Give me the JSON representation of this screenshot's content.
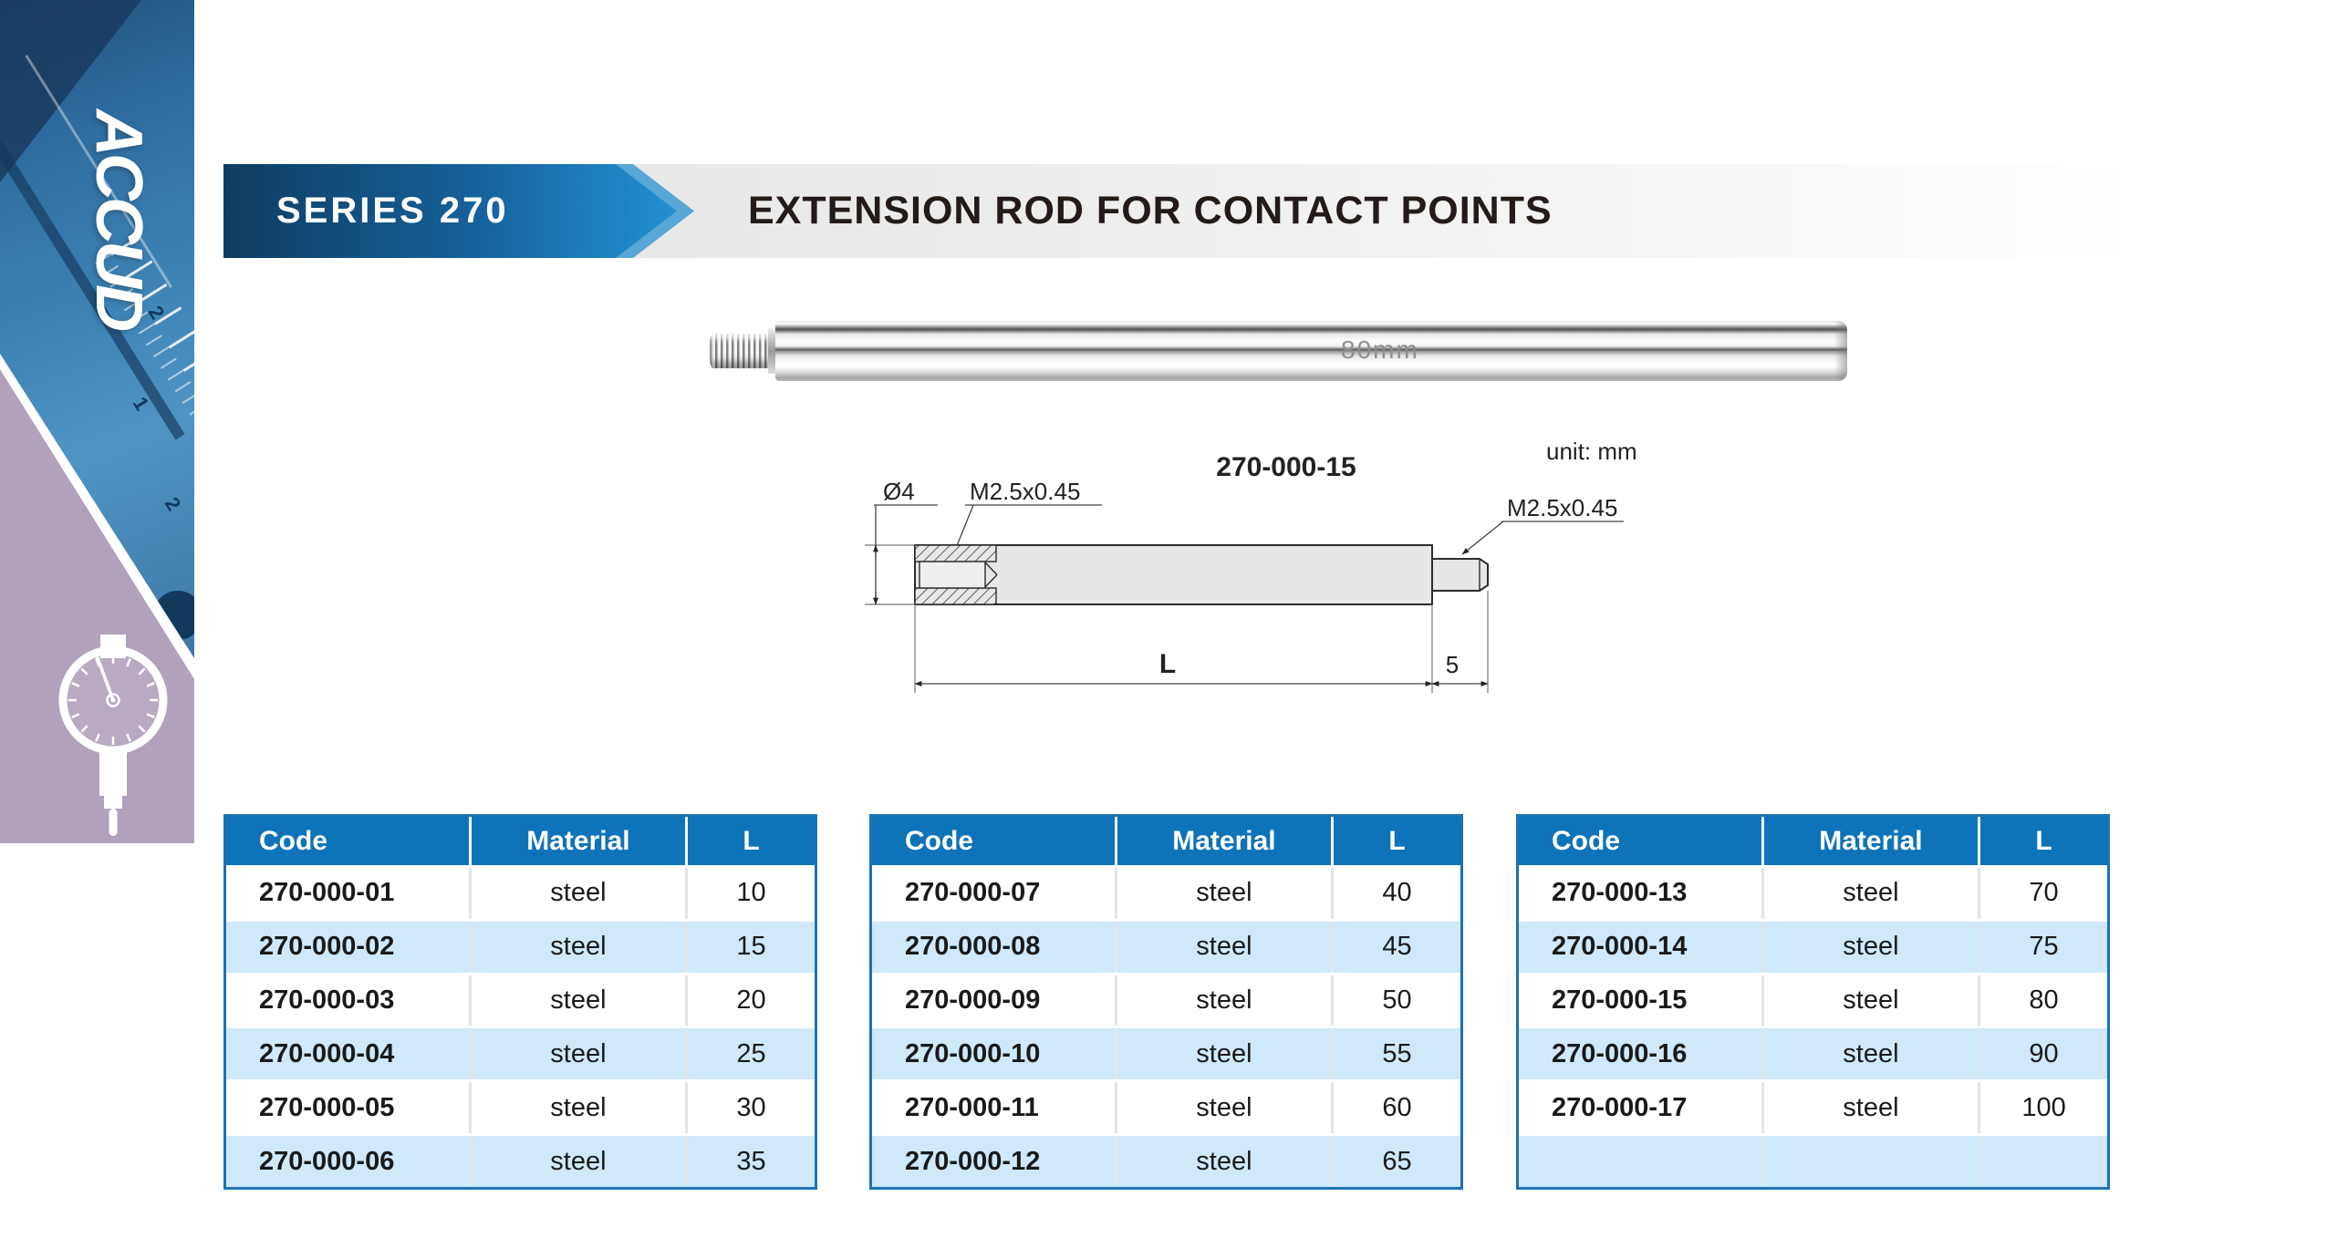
{
  "brand": {
    "logo_text": "ACCUD"
  },
  "sidebar": {
    "ruler_digits": [
      "2",
      "1",
      "2"
    ]
  },
  "header": {
    "series_label": "SERIES 270",
    "title": "EXTENSION ROD FOR CONTACT POINTS"
  },
  "product_photo": {
    "engraving": "80mm"
  },
  "drawing": {
    "model_label": "270-000-15",
    "unit_label": "unit: mm",
    "diameter_label": "Ø4",
    "thread_label_left": "M2.5x0.45",
    "thread_label_right": "M2.5x0.45",
    "length_label": "L",
    "stud_length_label": "5"
  },
  "colors": {
    "accent_blue": "#0e73b9",
    "row_alt_blue": "#cfe8fa",
    "banner_dark_blue": "#0d3c61",
    "banner_bright_blue": "#2490d2",
    "chevron_light_blue": "#58a7d6",
    "sidebar_mauve": "#b2a1ba",
    "sidebar_blue": "#3d82b5",
    "title_text": "#241b18"
  },
  "tables": [
    {
      "headers": [
        "Code",
        "Material",
        "L"
      ],
      "rows": [
        [
          "270-000-01",
          "steel",
          "10"
        ],
        [
          "270-000-02",
          "steel",
          "15"
        ],
        [
          "270-000-03",
          "steel",
          "20"
        ],
        [
          "270-000-04",
          "steel",
          "25"
        ],
        [
          "270-000-05",
          "steel",
          "30"
        ],
        [
          "270-000-06",
          "steel",
          "35"
        ]
      ]
    },
    {
      "headers": [
        "Code",
        "Material",
        "L"
      ],
      "rows": [
        [
          "270-000-07",
          "steel",
          "40"
        ],
        [
          "270-000-08",
          "steel",
          "45"
        ],
        [
          "270-000-09",
          "steel",
          "50"
        ],
        [
          "270-000-10",
          "steel",
          "55"
        ],
        [
          "270-000-11",
          "steel",
          "60"
        ],
        [
          "270-000-12",
          "steel",
          "65"
        ]
      ]
    },
    {
      "headers": [
        "Code",
        "Material",
        "L"
      ],
      "rows": [
        [
          "270-000-13",
          "steel",
          "70"
        ],
        [
          "270-000-14",
          "steel",
          "75"
        ],
        [
          "270-000-15",
          "steel",
          "80"
        ],
        [
          "270-000-16",
          "steel",
          "90"
        ],
        [
          "270-000-17",
          "steel",
          "100"
        ],
        [
          "",
          "",
          ""
        ]
      ]
    }
  ]
}
